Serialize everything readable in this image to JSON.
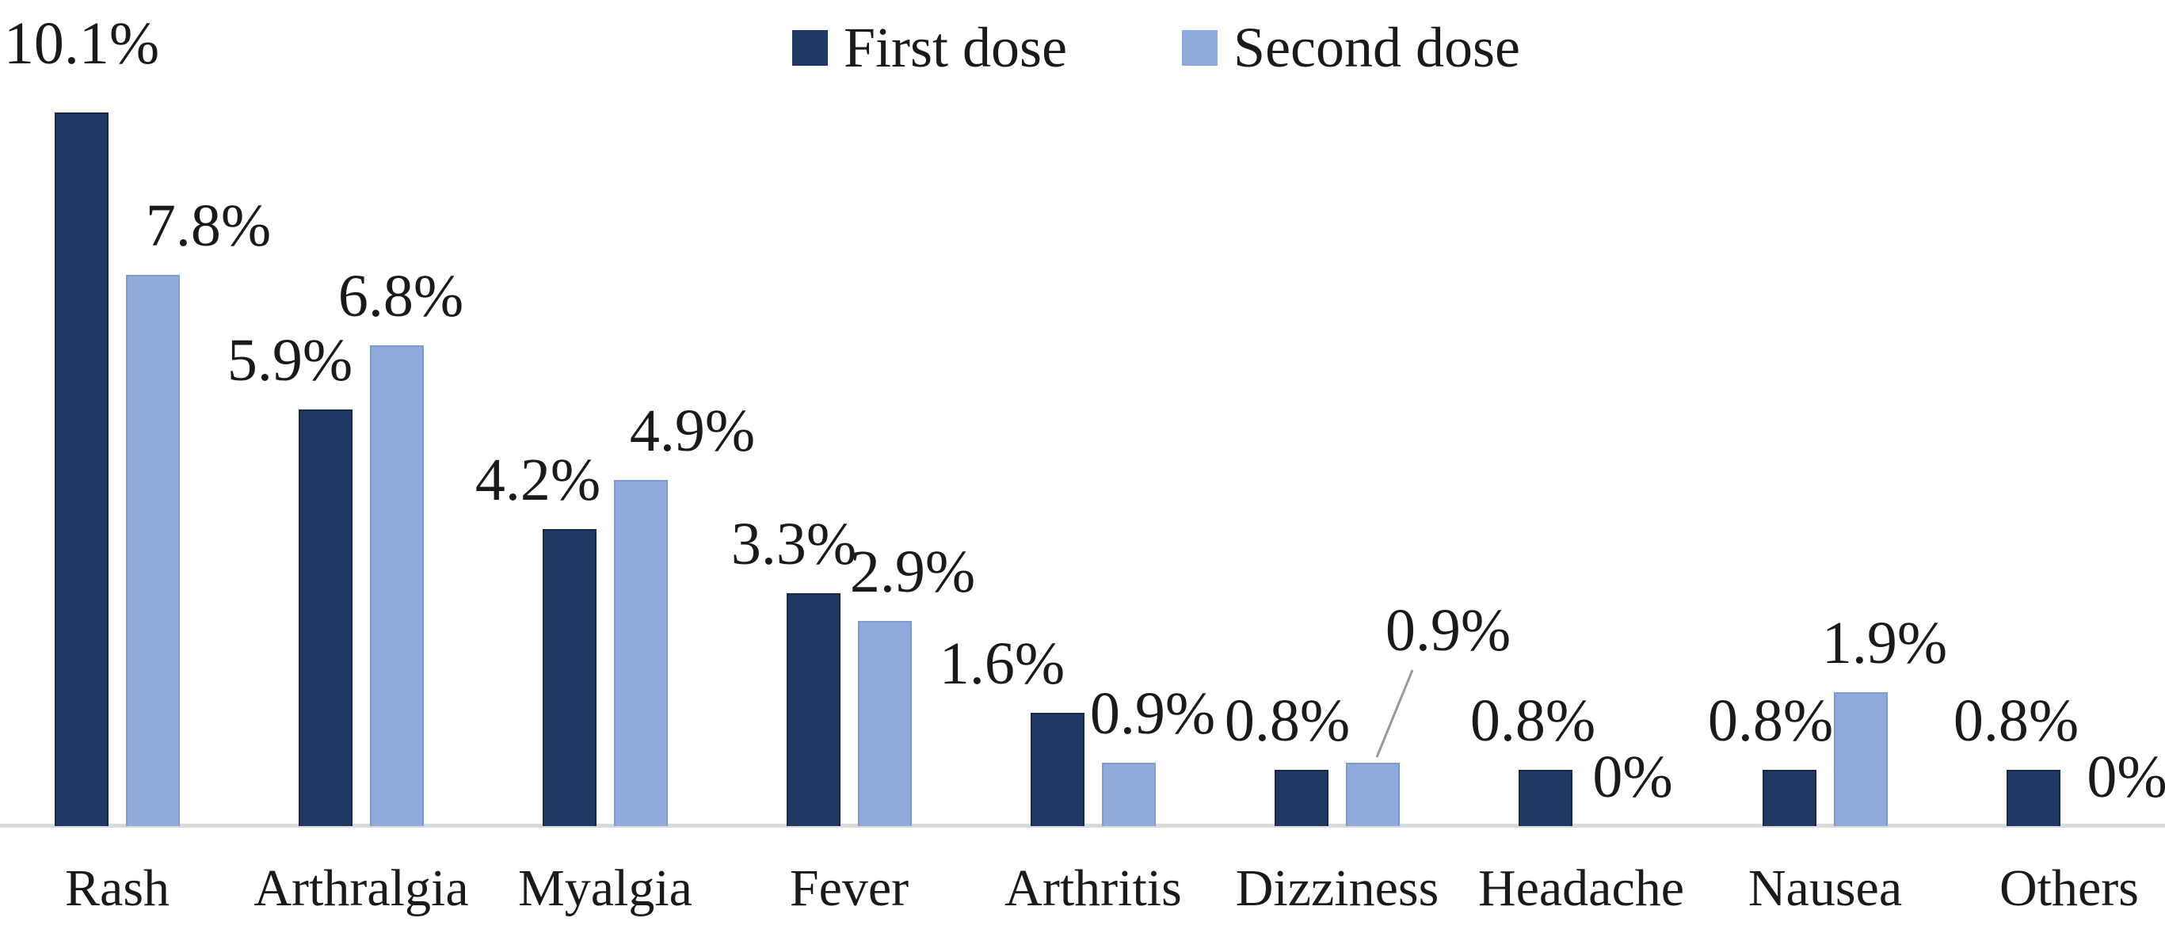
{
  "chart_data": {
    "type": "bar",
    "title": "",
    "xlabel": "",
    "ylabel": "",
    "ylim": [
      0,
      11
    ],
    "grid": false,
    "legend_position": "top-center",
    "axis_line_color": "#d9d9d9",
    "text_color": "#1a1a1a",
    "background_color": "#ffffff",
    "categories": [
      "Rash",
      "Arthralgia",
      "Myalgia",
      "Fever",
      "Arthritis",
      "Dizziness",
      "Headache",
      "Nausea",
      "Others"
    ],
    "series": [
      {
        "name": "First dose",
        "color": "#1f3864",
        "values": [
          10.1,
          5.9,
          4.2,
          3.3,
          1.6,
          0.8,
          0.8,
          0.8,
          0.8
        ],
        "labels": [
          "10.1%",
          "5.9%",
          "4.2%",
          "3.3%",
          "1.6%",
          "0.8%",
          "0.8%",
          "0.8%",
          "0.8%"
        ]
      },
      {
        "name": "Second dose",
        "color": "#8faadc",
        "values": [
          7.8,
          6.8,
          4.9,
          2.9,
          0.9,
          0.9,
          0,
          1.9,
          0
        ],
        "labels": [
          "7.8%",
          "6.8%",
          "4.9%",
          "2.9%",
          "0.9%",
          "0.9%",
          "0%",
          "1.9%",
          "0%"
        ]
      }
    ],
    "annotations": {
      "dizziness_second_dose_callout": "0.9% label elevated with leader line to bar"
    }
  }
}
